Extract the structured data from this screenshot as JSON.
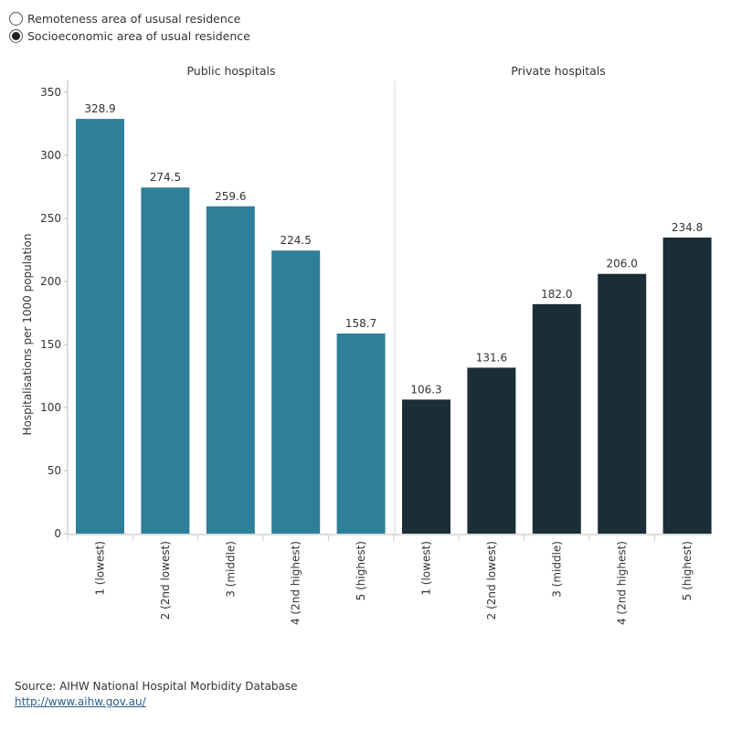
{
  "controls": {
    "options": [
      {
        "label": "Remoteness area of ususal residence",
        "selected": false
      },
      {
        "label": "Socioeconomic area of usual residence",
        "selected": true
      }
    ]
  },
  "chart_data": {
    "type": "bar",
    "ylabel": "Hospitalisations per 1000 population",
    "ylim": [
      0,
      350
    ],
    "yticks": [
      0,
      50,
      100,
      150,
      200,
      250,
      300,
      350
    ],
    "categories": [
      "1 (lowest)",
      "2 (2nd lowest)",
      "3 (middle)",
      "4 (2nd highest)",
      "5 (highest)"
    ],
    "panels": [
      {
        "title": "Public hospitals",
        "color": "#2e7f99",
        "values": [
          328.9,
          274.5,
          259.6,
          224.5,
          158.7
        ],
        "labels": [
          "328.9",
          "274.5",
          "259.6",
          "224.5",
          "158.7"
        ]
      },
      {
        "title": "Private hospitals",
        "color": "#1b2e37",
        "values": [
          106.3,
          131.6,
          182.0,
          206.0,
          234.8
        ],
        "labels": [
          "106.3",
          "131.6",
          "182.0",
          "206.0",
          "234.8"
        ]
      }
    ],
    "grid": false
  },
  "source": {
    "text": "Source: AIHW National Hospital Morbidity Database",
    "link": "http://www.aihw.gov.au/"
  }
}
